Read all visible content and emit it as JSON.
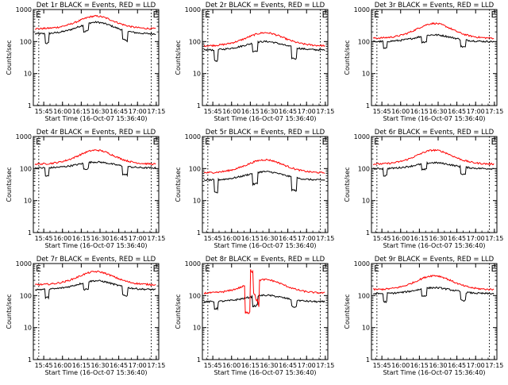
{
  "chart_data": {
    "type": "line",
    "layout": "3x3 grid",
    "y_scale": "log",
    "ylim": [
      1,
      1000
    ],
    "y_ticks": [
      1,
      10,
      100,
      1000
    ],
    "y_tick_labels": [
      "1",
      "10",
      "100",
      "1000"
    ],
    "x_tick_labels": [
      "15:45",
      "16:00",
      "16:15",
      "16:30",
      "16:45",
      "17:00",
      "17:15"
    ],
    "xlabel": "Start Time (16-Oct-07 15:36:40)",
    "ylabel": "Counts/sec",
    "colors": {
      "events": "#000000",
      "lld": "#ff0000",
      "markers": "#000000"
    },
    "event_marks": {
      "start_label": "E",
      "end_label": "E",
      "start_time": "15:41",
      "end_time": "17:11",
      "style": "dotted"
    },
    "panels": [
      {
        "id": "det1r",
        "title": "Det 1r BLACK = Events, RED = LLD",
        "profile": "A",
        "series": [
          {
            "name": "BLACK",
            "color": "#000000",
            "base": 160,
            "amp": 2.5,
            "dips": [
              0.5,
              0.6,
              0.5
            ]
          },
          {
            "name": "RED",
            "color": "#ff0000",
            "base": 230,
            "amp": 2.7
          }
        ]
      },
      {
        "id": "det2r",
        "title": "Det 2r BLACK = Events, RED = LLD",
        "profile": "B",
        "series": [
          {
            "name": "BLACK",
            "color": "#000000",
            "base": 50,
            "amp": 2.0,
            "dips": [
              0.45,
              0.55,
              0.45
            ]
          },
          {
            "name": "RED",
            "color": "#ff0000",
            "base": 65,
            "amp": 2.9
          }
        ]
      },
      {
        "id": "det3r",
        "title": "Det 3r BLACK = Events, RED = LLD",
        "profile": "A",
        "series": [
          {
            "name": "BLACK",
            "color": "#000000",
            "base": 95,
            "amp": 1.7,
            "dips": [
              0.6,
              0.65,
              0.6
            ]
          },
          {
            "name": "RED",
            "color": "#ff0000",
            "base": 115,
            "amp": 3.2
          }
        ]
      },
      {
        "id": "det4r",
        "title": "Det 4r BLACK = Events, RED = LLD",
        "profile": "A",
        "series": [
          {
            "name": "BLACK",
            "color": "#000000",
            "base": 100,
            "amp": 1.6,
            "dips": [
              0.55,
              0.65,
              0.55
            ]
          },
          {
            "name": "RED",
            "color": "#ff0000",
            "base": 125,
            "amp": 3.0
          }
        ]
      },
      {
        "id": "det5r",
        "title": "Det 5r BLACK = Events, RED = LLD",
        "profile": "B",
        "series": [
          {
            "name": "BLACK",
            "color": "#000000",
            "base": 40,
            "amp": 2.0,
            "dips": [
              0.4,
              0.45,
              0.4
            ]
          },
          {
            "name": "RED",
            "color": "#ff0000",
            "base": 65,
            "amp": 2.9
          }
        ]
      },
      {
        "id": "det6r",
        "title": "Det 6r BLACK = Events, RED = LLD",
        "profile": "A",
        "series": [
          {
            "name": "BLACK",
            "color": "#000000",
            "base": 95,
            "amp": 1.6,
            "dips": [
              0.6,
              0.65,
              0.6
            ]
          },
          {
            "name": "RED",
            "color": "#ff0000",
            "base": 125,
            "amp": 3.0
          }
        ]
      },
      {
        "id": "det7r",
        "title": "Det 7r BLACK = Events, RED = LLD",
        "profile": "A",
        "series": [
          {
            "name": "BLACK",
            "color": "#000000",
            "base": 145,
            "amp": 2.0,
            "dips": [
              0.55,
              0.6,
              0.55
            ]
          },
          {
            "name": "RED",
            "color": "#ff0000",
            "base": 200,
            "amp": 2.8
          }
        ]
      },
      {
        "id": "det8r",
        "title": "Det 8r BLACK = Events, RED = LLD",
        "profile": "C",
        "series": [
          {
            "name": "BLACK",
            "color": "#000000",
            "base": 60,
            "amp": 1.7,
            "dips": [
              0.6,
              0.5,
              0.6
            ]
          },
          {
            "name": "RED",
            "color": "#ff0000",
            "base": 105,
            "amp": 3.0
          }
        ]
      },
      {
        "id": "det9r",
        "title": "Det 9r BLACK = Events, RED = LLD",
        "profile": "A",
        "series": [
          {
            "name": "BLACK",
            "color": "#000000",
            "base": 110,
            "amp": 1.6,
            "dips": [
              0.55,
              0.6,
              0.55
            ]
          },
          {
            "name": "RED",
            "color": "#ff0000",
            "base": 140,
            "amp": 3.0
          }
        ]
      }
    ]
  }
}
